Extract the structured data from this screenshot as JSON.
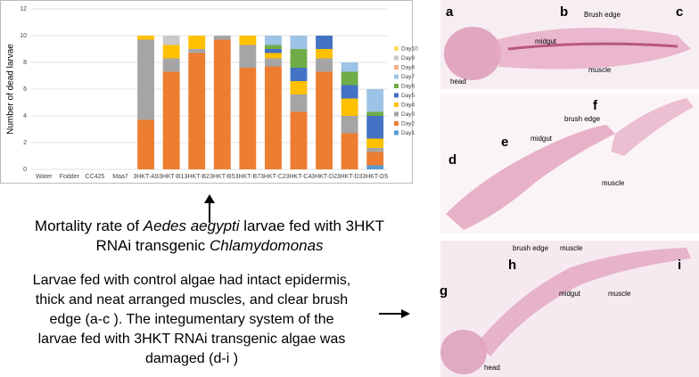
{
  "chart_data": {
    "type": "stacked_bar",
    "ylabel": "Number of dead larvae",
    "categories": [
      "Water",
      "Fodder",
      "CC425",
      "Maa7",
      "3HKT-A9",
      "3HKT-B1",
      "3HKT-B2",
      "3HKT-B5",
      "3HKT-B7",
      "3HKT-C2",
      "3HKT-C4",
      "3HKT-D2",
      "3HKT-D3",
      "3HKT-D5"
    ],
    "series": [
      {
        "name": "Day1",
        "color": "#5b9bd5",
        "values": [
          0,
          0,
          0,
          0,
          0,
          0,
          0,
          0,
          0,
          0,
          0,
          0,
          0,
          0.3
        ]
      },
      {
        "name": "Day2",
        "color": "#ed7d31",
        "values": [
          0,
          0,
          0,
          0,
          3.7,
          7.3,
          8.7,
          9.7,
          7.6,
          7.7,
          4.3,
          7.3,
          2.7,
          1.0
        ]
      },
      {
        "name": "Day3",
        "color": "#a5a5a5",
        "values": [
          0,
          0,
          0,
          0,
          6.0,
          1.0,
          0.3,
          0.3,
          1.7,
          0.6,
          1.3,
          1.0,
          1.3,
          0.3
        ]
      },
      {
        "name": "Day4",
        "color": "#ffc000",
        "values": [
          0,
          0,
          0,
          0,
          0.3,
          1.0,
          1.0,
          0,
          0.7,
          0.4,
          1.0,
          0.7,
          1.3,
          0.7
        ]
      },
      {
        "name": "Day5",
        "color": "#4472c4",
        "values": [
          0,
          0,
          0,
          0,
          0,
          0,
          0,
          0,
          0,
          0.3,
          1.0,
          1.0,
          1.0,
          1.7
        ]
      },
      {
        "name": "Day6",
        "color": "#70ad47",
        "values": [
          0,
          0,
          0,
          0,
          0,
          0,
          0,
          0,
          0,
          0.3,
          1.4,
          0,
          1.0,
          0.3
        ]
      },
      {
        "name": "Day7",
        "color": "#9dc3e6",
        "values": [
          0,
          0,
          0,
          0,
          0,
          0,
          0,
          0,
          0,
          0.7,
          1.0,
          0,
          0.7,
          1.7
        ]
      },
      {
        "name": "Day8",
        "color": "#f4b183",
        "values": [
          0,
          0,
          0,
          0,
          0,
          0,
          0,
          0,
          0,
          0,
          0,
          0,
          0,
          0
        ]
      },
      {
        "name": "Day9",
        "color": "#c9c9c9",
        "values": [
          0,
          0,
          0,
          0,
          0,
          0.7,
          0,
          0,
          0,
          0,
          0,
          0,
          0,
          0
        ]
      },
      {
        "name": "Day10",
        "color": "#ffd966",
        "values": [
          0,
          0,
          0,
          0,
          0,
          0,
          0,
          0,
          0,
          0,
          0,
          0,
          0,
          0
        ]
      }
    ],
    "ylim": [
      0,
      12
    ],
    "yticks": [
      0,
      2,
      4,
      6,
      8,
      10,
      12
    ],
    "grid": true,
    "legend": "right"
  },
  "caption": {
    "line1": [
      "Mortality rate of",
      "Aedes aegypti",
      "larvae fed with 3HKT"
    ],
    "line2": [
      "RNAi transgenic",
      "Chlamydomonas"
    ]
  },
  "description": [
    "Larvae fed with control algae had intact epidermis,",
    "thick and neat arranged muscles, and clear brush",
    "edge (a-c ). The integumentary system of the",
    "larvae fed with 3HKT RNAi transgenic algae was",
    "damaged (d-i )"
  ],
  "panels": {
    "top": {
      "letters": [
        "a",
        "b",
        "c"
      ],
      "labels": [
        "midgut",
        "Brush edge",
        "head",
        "muscle"
      ]
    },
    "middle": {
      "letters": [
        "d",
        "e",
        "f"
      ],
      "labels": [
        "midgut",
        "brush edge",
        "muscle"
      ]
    },
    "bottom": {
      "letters": [
        "g",
        "h",
        "i"
      ],
      "labels": [
        "brush edge",
        "muscle",
        "midgut",
        "muscle",
        "head"
      ]
    }
  }
}
